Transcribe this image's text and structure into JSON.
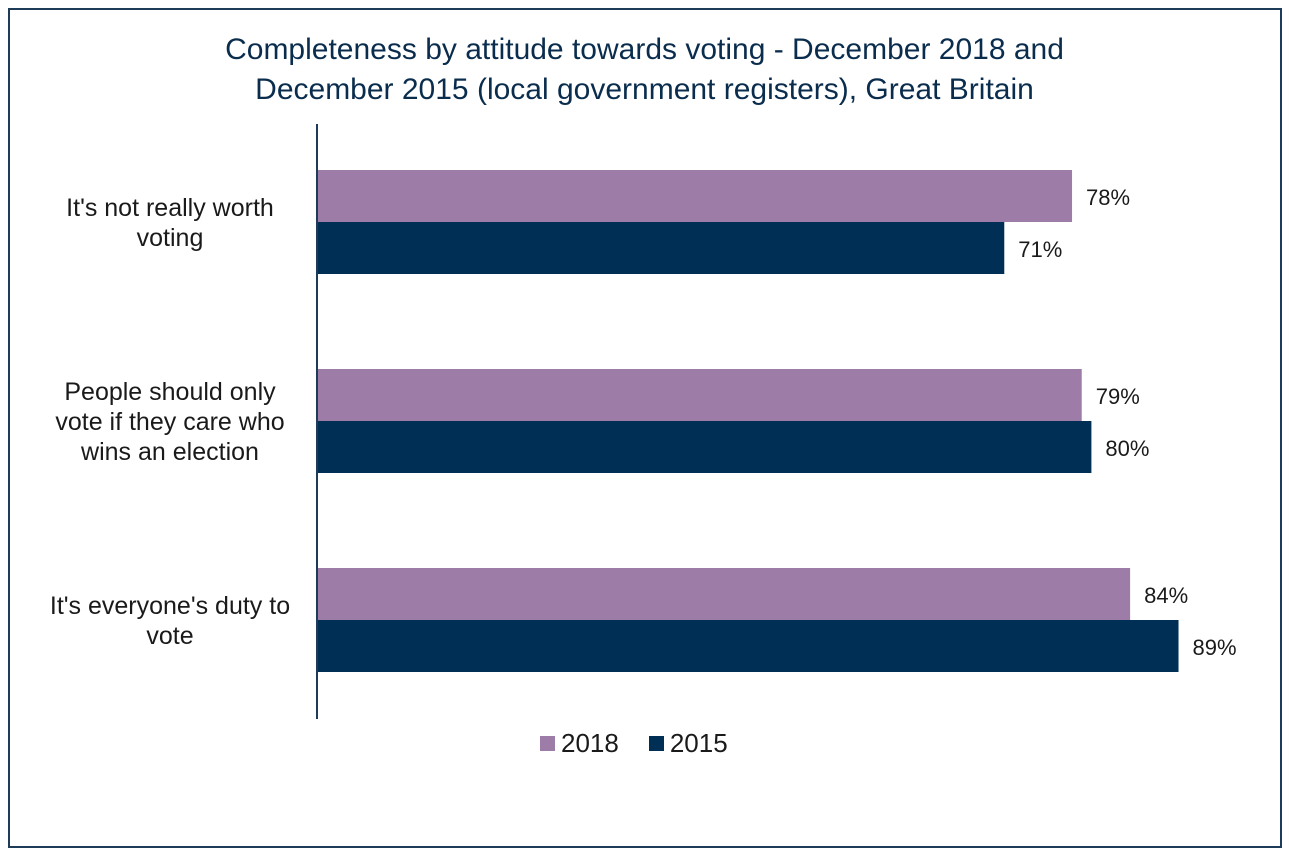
{
  "colors": {
    "series_2018": "#9e7ca8",
    "series_2015": "#002f56",
    "frame": "#1f3b5a",
    "title": "#0b2d4d",
    "text": "#1a1a1a"
  },
  "chart_data": {
    "type": "bar",
    "orientation": "horizontal",
    "title_lines": [
      "Completeness by attitude towards voting - December 2018 and",
      "December 2015 (local government registers), Great Britain"
    ],
    "categories": [
      [
        "It's not really worth",
        "voting"
      ],
      [
        "People should only",
        "vote if they care who",
        "wins an election"
      ],
      [
        "It's everyone's duty to",
        "vote"
      ]
    ],
    "series": [
      {
        "name": "2018",
        "values": [
          78,
          79,
          84
        ],
        "labels": [
          "78%",
          "79%",
          "84%"
        ],
        "color": "#9e7ca8"
      },
      {
        "name": "2015",
        "values": [
          71,
          80,
          89
        ],
        "labels": [
          "71%",
          "80%",
          "89%"
        ],
        "color": "#002f56"
      }
    ],
    "xlim": [
      0,
      100
    ],
    "grid": false,
    "legend_position": "bottom"
  }
}
